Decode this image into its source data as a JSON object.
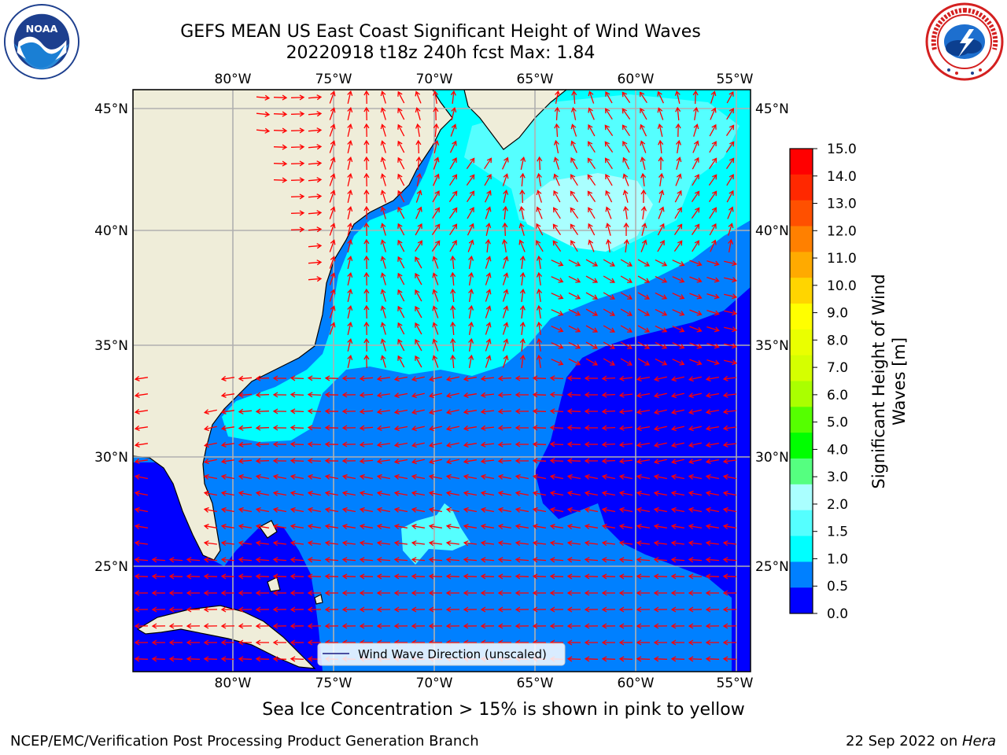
{
  "header": {
    "title_line1": "GEFS MEAN US East Coast Significant Height of Wind Waves",
    "title_line2": "20220918 t18z 240h fcst   Max: 1.84"
  },
  "logos": {
    "left": {
      "icon": "noaa-logo-icon",
      "text": "NOAA"
    },
    "right": {
      "icon": "national-weather-service-logo-icon",
      "text": "NATIONAL WEATHER SERVICE"
    }
  },
  "map": {
    "lon_labels": [
      "80°W",
      "75°W",
      "70°W",
      "65°W",
      "60°W",
      "55°W"
    ],
    "lat_labels": [
      "45°N",
      "40°N",
      "35°N",
      "30°N",
      "25°N"
    ],
    "legend_label": "Wind Wave Direction (unscaled)",
    "colors": {
      "land": "#efedd9",
      "ocean_0_0.5": "#0000ff",
      "ocean_0.5_1.0": "#0080ff",
      "ocean_1.0_1.5": "#00ffff",
      "ocean_1.5_2.0": "#55ffff",
      "ocean_2.0_3.0": "#aaffff",
      "arrow": "#ff0000",
      "grid": "#b0b0b0"
    }
  },
  "colorbar": {
    "label": "Significant Height of Wind Waves [m]",
    "label_line1": "Significant Height of Wind",
    "label_line2": "Waves [m]",
    "ticks": [
      "15.0",
      "14.0",
      "13.0",
      "12.0",
      "11.0",
      "10.0",
      "9.0",
      "8.0",
      "7.0",
      "6.0",
      "5.0",
      "4.0",
      "3.0",
      "2.0",
      "1.5",
      "1.0",
      "0.5",
      "0.0"
    ],
    "colors_top_to_bottom": [
      "#ff0000",
      "#ff2800",
      "#ff5000",
      "#ff8000",
      "#ffaa00",
      "#ffd500",
      "#ffff00",
      "#eaff00",
      "#d5ff00",
      "#aaff00",
      "#55ff00",
      "#00ff00",
      "#55ff80",
      "#aaffff",
      "#55ffff",
      "#00ffff",
      "#0080ff",
      "#0000ff"
    ]
  },
  "bottom_note": "Sea Ice Concentration > 15% is shown in pink to yellow",
  "footer": {
    "left": "NCEP/EMC/Verification Post Processing Product Generation Branch",
    "right_date": "22 Sep 2022 on ",
    "right_host": "Hera"
  }
}
